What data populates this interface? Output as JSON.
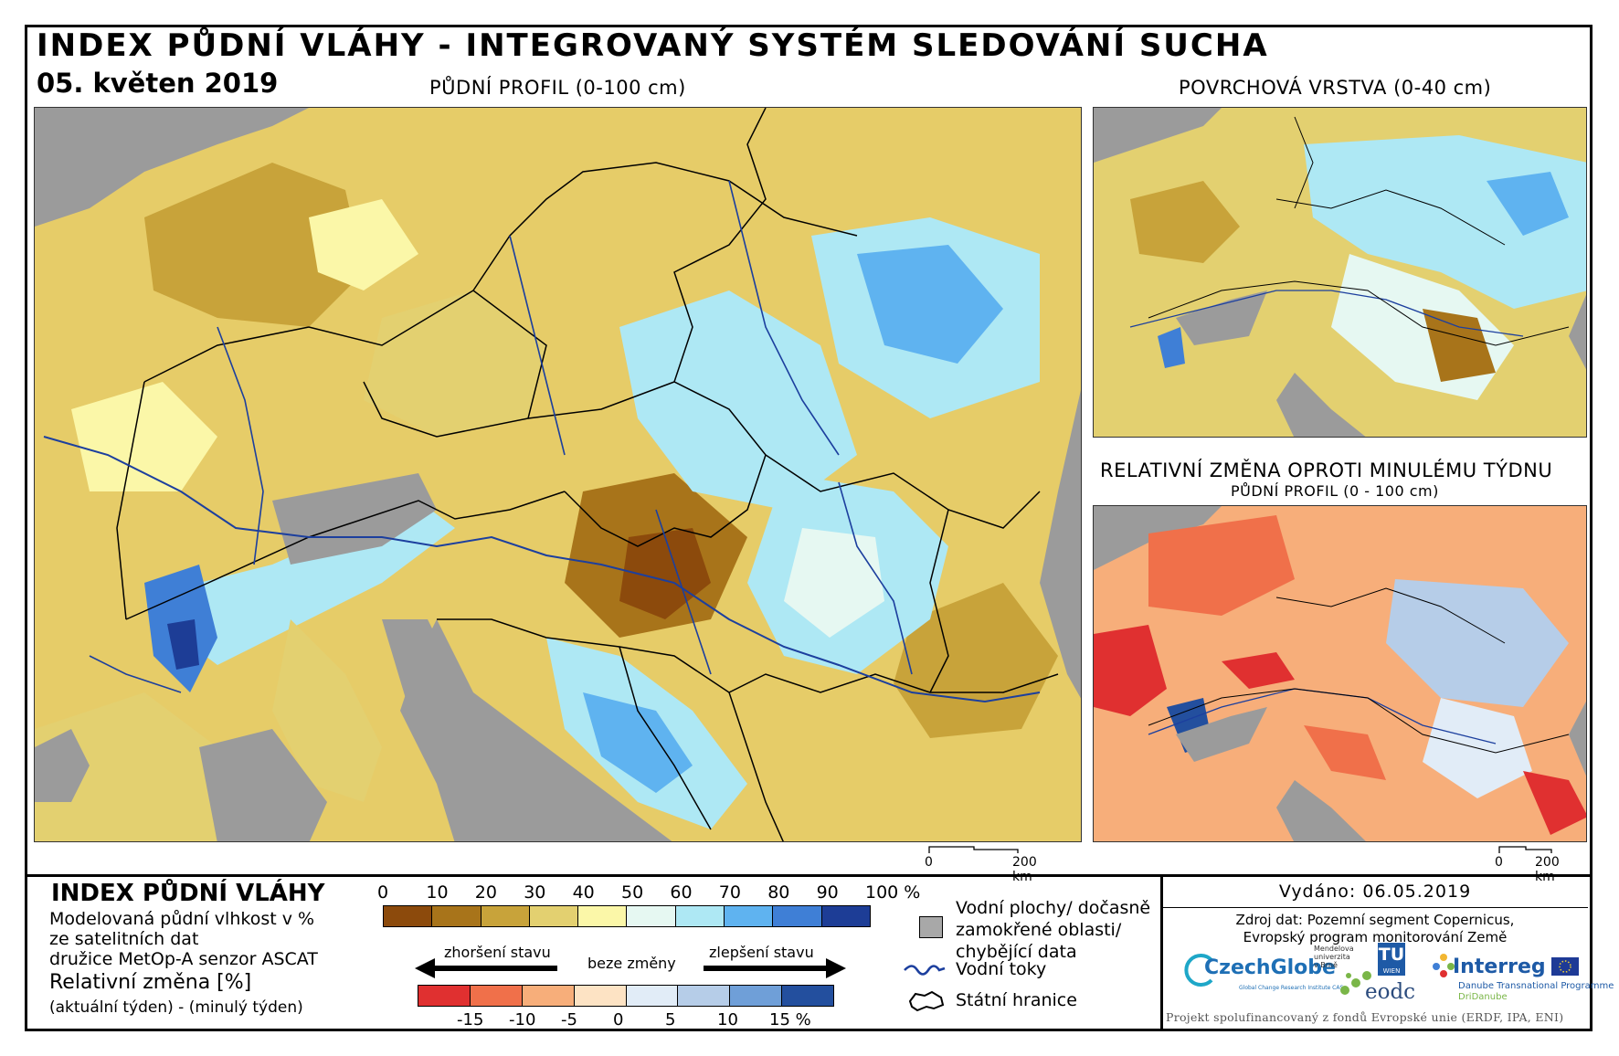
{
  "header": {
    "title": "INDEX PŮDNÍ VLÁHY - INTEGROVANÝ SYSTÉM SLEDOVÁNÍ SUCHA",
    "date": "05. květen 2019"
  },
  "maps": {
    "main_title": "PŮDNÍ PROFIL (0-100 cm)",
    "surface_title": "POVRCHOVÁ VRSTVA (0-40 cm)",
    "change_title": "RELATIVNÍ ZMĚNA OPROTI MINULÉMU TÝDNU",
    "change_subtitle": "PŮDNÍ PROFIL (0 - 100 cm)",
    "scale_zero": "0",
    "scale_main": "200 km",
    "scale_small": "200 km"
  },
  "legend": {
    "title": "INDEX PŮDNÍ VLÁHY",
    "desc_line1": "Modelovaná půdní vlhkost v %",
    "desc_line2": "ze satelitních dat",
    "desc_line3": "družice MetOp-A senzor ASCAT",
    "rel_title": "Relativní změna [%]",
    "rel_desc": "(aktuální týden) - (minulý týden)",
    "moisture_ticks": [
      "0",
      "10",
      "20",
      "30",
      "40",
      "50",
      "60",
      "70",
      "80",
      "90",
      "100 %"
    ],
    "moisture_colors": [
      "#8c4a0c",
      "#a8741a",
      "#c8a33a",
      "#e3d070",
      "#fbf7a8",
      "#e6f8f2",
      "#aee8f4",
      "#5fb3f0",
      "#3f7fd6",
      "#1d3d96"
    ],
    "worse_label": "zhoršení stavu",
    "nochange_label": "beze změny",
    "better_label": "zlepšení stavu",
    "change_ticks": [
      "-15",
      "-10",
      "-5",
      "0",
      "5",
      "10",
      "15 %"
    ],
    "change_colors": [
      "#e03030",
      "#f0704a",
      "#f7ae7a",
      "#fde3c4",
      "#e1ecf7",
      "#b6cde8",
      "#6f9fd8",
      "#234f9e"
    ],
    "water_label_1": "Vodní plochy/ dočasně",
    "water_label_2": "zamokřené oblasti/",
    "water_label_3": "chybějící data",
    "rivers_label": "Vodní toky",
    "borders_label": "Státní hranice",
    "water_color": "#a8a8a8",
    "river_color": "#1c3f9e"
  },
  "info": {
    "issued": "Vydáno: 06.05.2019",
    "source_line1": "Zdroj dat: Pozemní segment Copernicus,",
    "source_line2": "Evropský program monitorování Země",
    "logo_czechglobe": "CzechGlobe",
    "logo_czechglobe_sub": "Global Change Research Institute CAS",
    "logo_mendel": "Mendelova univerzita v Brně",
    "logo_tu": "TU",
    "logo_tu_sub": "WIEN",
    "logo_eodc": "eodc",
    "logo_interreg": "Interreg",
    "logo_interreg_sub1": "Danube Transnational Programme",
    "logo_interreg_sub2": "DriDanube",
    "footer": "Projekt spolufinancovaný z fondů Evropské unie (ERDF, IPA, ENI)"
  }
}
